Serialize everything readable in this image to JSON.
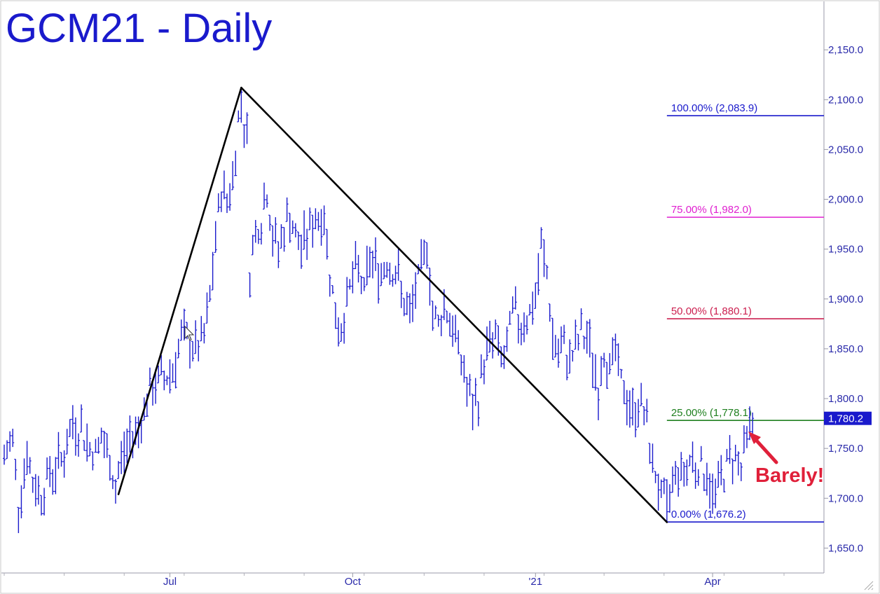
{
  "chart_data": {
    "type": "bar",
    "title": "GCM21 - Daily",
    "ylim": [
      1625,
      2200
    ],
    "y_ticks": [
      1650,
      1700,
      1750,
      1800,
      1850,
      1900,
      1950,
      2000,
      2050,
      2100,
      2150
    ],
    "y_tick_labels": [
      "1,650.0",
      "1,700.0",
      "1,750.0",
      "1,800.0",
      "1,850.0",
      "1,900.0",
      "1,950.0",
      "2,000.0",
      "2,050.0",
      "2,100.0",
      "2,150.0"
    ],
    "x_labels": [
      {
        "label": "Jul",
        "x": 58
      },
      {
        "label": "Oct",
        "x": 122
      },
      {
        "label": "'21",
        "x": 186
      },
      {
        "label": "Apr",
        "x": 248
      }
    ],
    "x_range": [
      0,
      286
    ],
    "last_price": {
      "value": 1780.2,
      "label": "1,780.2"
    },
    "fib_levels": [
      {
        "label": "100.00% (2,083.9)",
        "value": 2083.9,
        "color": "#1a1acc"
      },
      {
        "label": "75.00% (1,982.0)",
        "value": 1982.0,
        "color": "#e020d0"
      },
      {
        "label": "50.00% (1,880.1)",
        "value": 1880.1,
        "color": "#cc2050"
      },
      {
        "label": "25.00% (1,778.1)",
        "value": 1778.1,
        "color": "#208020"
      },
      {
        "label": "0.00% (1,676.2)",
        "value": 1676.2,
        "color": "#1a1acc"
      }
    ],
    "fib_x_start": 232,
    "trendlines": [
      {
        "x1": 40,
        "y1": 1704,
        "x2": 83,
        "y2": 2112
      },
      {
        "x1": 83,
        "y1": 2112,
        "x2": 232,
        "y2": 1676
      }
    ],
    "anchors": [
      {
        "x": 0,
        "y": 1740
      },
      {
        "x": 3,
        "y": 1760
      },
      {
        "x": 5,
        "y": 1695
      },
      {
        "x": 8,
        "y": 1745
      },
      {
        "x": 10,
        "y": 1715
      },
      {
        "x": 13,
        "y": 1705
      },
      {
        "x": 16,
        "y": 1725
      },
      {
        "x": 18,
        "y": 1730
      },
      {
        "x": 21,
        "y": 1745
      },
      {
        "x": 24,
        "y": 1775
      },
      {
        "x": 27,
        "y": 1770
      },
      {
        "x": 29,
        "y": 1755
      },
      {
        "x": 32,
        "y": 1745
      },
      {
        "x": 34,
        "y": 1760
      },
      {
        "x": 37,
        "y": 1735
      },
      {
        "x": 39,
        "y": 1710
      },
      {
        "x": 41,
        "y": 1740
      },
      {
        "x": 44,
        "y": 1760
      },
      {
        "x": 47,
        "y": 1770
      },
      {
        "x": 50,
        "y": 1800
      },
      {
        "x": 53,
        "y": 1815
      },
      {
        "x": 56,
        "y": 1820
      },
      {
        "x": 59,
        "y": 1830
      },
      {
        "x": 62,
        "y": 1860
      },
      {
        "x": 65,
        "y": 1855
      },
      {
        "x": 68,
        "y": 1850
      },
      {
        "x": 70,
        "y": 1860
      },
      {
        "x": 72,
        "y": 1900
      },
      {
        "x": 74,
        "y": 1960
      },
      {
        "x": 76,
        "y": 2010
      },
      {
        "x": 78,
        "y": 2000
      },
      {
        "x": 80,
        "y": 2020
      },
      {
        "x": 82,
        "y": 2080
      },
      {
        "x": 83,
        "y": 2100
      },
      {
        "x": 85,
        "y": 2060
      },
      {
        "x": 86,
        "y": 1930
      },
      {
        "x": 88,
        "y": 1970
      },
      {
        "x": 90,
        "y": 1980
      },
      {
        "x": 92,
        "y": 2010
      },
      {
        "x": 94,
        "y": 1960
      },
      {
        "x": 96,
        "y": 1950
      },
      {
        "x": 98,
        "y": 1970
      },
      {
        "x": 100,
        "y": 1985
      },
      {
        "x": 102,
        "y": 1960
      },
      {
        "x": 104,
        "y": 1950
      },
      {
        "x": 106,
        "y": 1965
      },
      {
        "x": 108,
        "y": 1975
      },
      {
        "x": 110,
        "y": 1985
      },
      {
        "x": 112,
        "y": 1980
      },
      {
        "x": 114,
        "y": 1930
      },
      {
        "x": 116,
        "y": 1880
      },
      {
        "x": 118,
        "y": 1870
      },
      {
        "x": 120,
        "y": 1900
      },
      {
        "x": 122,
        "y": 1920
      },
      {
        "x": 124,
        "y": 1930
      },
      {
        "x": 126,
        "y": 1905
      },
      {
        "x": 128,
        "y": 1940
      },
      {
        "x": 130,
        "y": 1935
      },
      {
        "x": 132,
        "y": 1925
      },
      {
        "x": 134,
        "y": 1940
      },
      {
        "x": 136,
        "y": 1930
      },
      {
        "x": 138,
        "y": 1920
      },
      {
        "x": 140,
        "y": 1895
      },
      {
        "x": 142,
        "y": 1880
      },
      {
        "x": 144,
        "y": 1910
      },
      {
        "x": 146,
        "y": 1925
      },
      {
        "x": 148,
        "y": 1960
      },
      {
        "x": 150,
        "y": 1885
      },
      {
        "x": 152,
        "y": 1875
      },
      {
        "x": 154,
        "y": 1895
      },
      {
        "x": 156,
        "y": 1880
      },
      {
        "x": 158,
        "y": 1860
      },
      {
        "x": 160,
        "y": 1840
      },
      {
        "x": 162,
        "y": 1810
      },
      {
        "x": 164,
        "y": 1790
      },
      {
        "x": 166,
        "y": 1800
      },
      {
        "x": 168,
        "y": 1840
      },
      {
        "x": 170,
        "y": 1855
      },
      {
        "x": 172,
        "y": 1860
      },
      {
        "x": 174,
        "y": 1840
      },
      {
        "x": 176,
        "y": 1845
      },
      {
        "x": 178,
        "y": 1890
      },
      {
        "x": 180,
        "y": 1875
      },
      {
        "x": 182,
        "y": 1880
      },
      {
        "x": 184,
        "y": 1885
      },
      {
        "x": 186,
        "y": 1900
      },
      {
        "x": 188,
        "y": 1950
      },
      {
        "x": 190,
        "y": 1925
      },
      {
        "x": 192,
        "y": 1860
      },
      {
        "x": 194,
        "y": 1845
      },
      {
        "x": 196,
        "y": 1850
      },
      {
        "x": 198,
        "y": 1840
      },
      {
        "x": 200,
        "y": 1850
      },
      {
        "x": 202,
        "y": 1865
      },
      {
        "x": 204,
        "y": 1860
      },
      {
        "x": 206,
        "y": 1840
      },
      {
        "x": 208,
        "y": 1810
      },
      {
        "x": 210,
        "y": 1850
      },
      {
        "x": 212,
        "y": 1830
      },
      {
        "x": 214,
        "y": 1845
      },
      {
        "x": 216,
        "y": 1815
      },
      {
        "x": 218,
        "y": 1800
      },
      {
        "x": 220,
        "y": 1785
      },
      {
        "x": 222,
        "y": 1795
      },
      {
        "x": 224,
        "y": 1790
      },
      {
        "x": 226,
        "y": 1750
      },
      {
        "x": 228,
        "y": 1725
      },
      {
        "x": 230,
        "y": 1700
      },
      {
        "x": 232,
        "y": 1690
      },
      {
        "x": 234,
        "y": 1720
      },
      {
        "x": 236,
        "y": 1730
      },
      {
        "x": 238,
        "y": 1725
      },
      {
        "x": 240,
        "y": 1740
      },
      {
        "x": 242,
        "y": 1735
      },
      {
        "x": 244,
        "y": 1730
      },
      {
        "x": 246,
        "y": 1725
      },
      {
        "x": 248,
        "y": 1700
      },
      {
        "x": 250,
        "y": 1715
      },
      {
        "x": 252,
        "y": 1725
      },
      {
        "x": 254,
        "y": 1740
      },
      {
        "x": 256,
        "y": 1745
      },
      {
        "x": 258,
        "y": 1730
      },
      {
        "x": 260,
        "y": 1760
      },
      {
        "x": 262,
        "y": 1780
      }
    ],
    "annotation": {
      "text": "Barely!",
      "color": "#e0203a"
    }
  }
}
